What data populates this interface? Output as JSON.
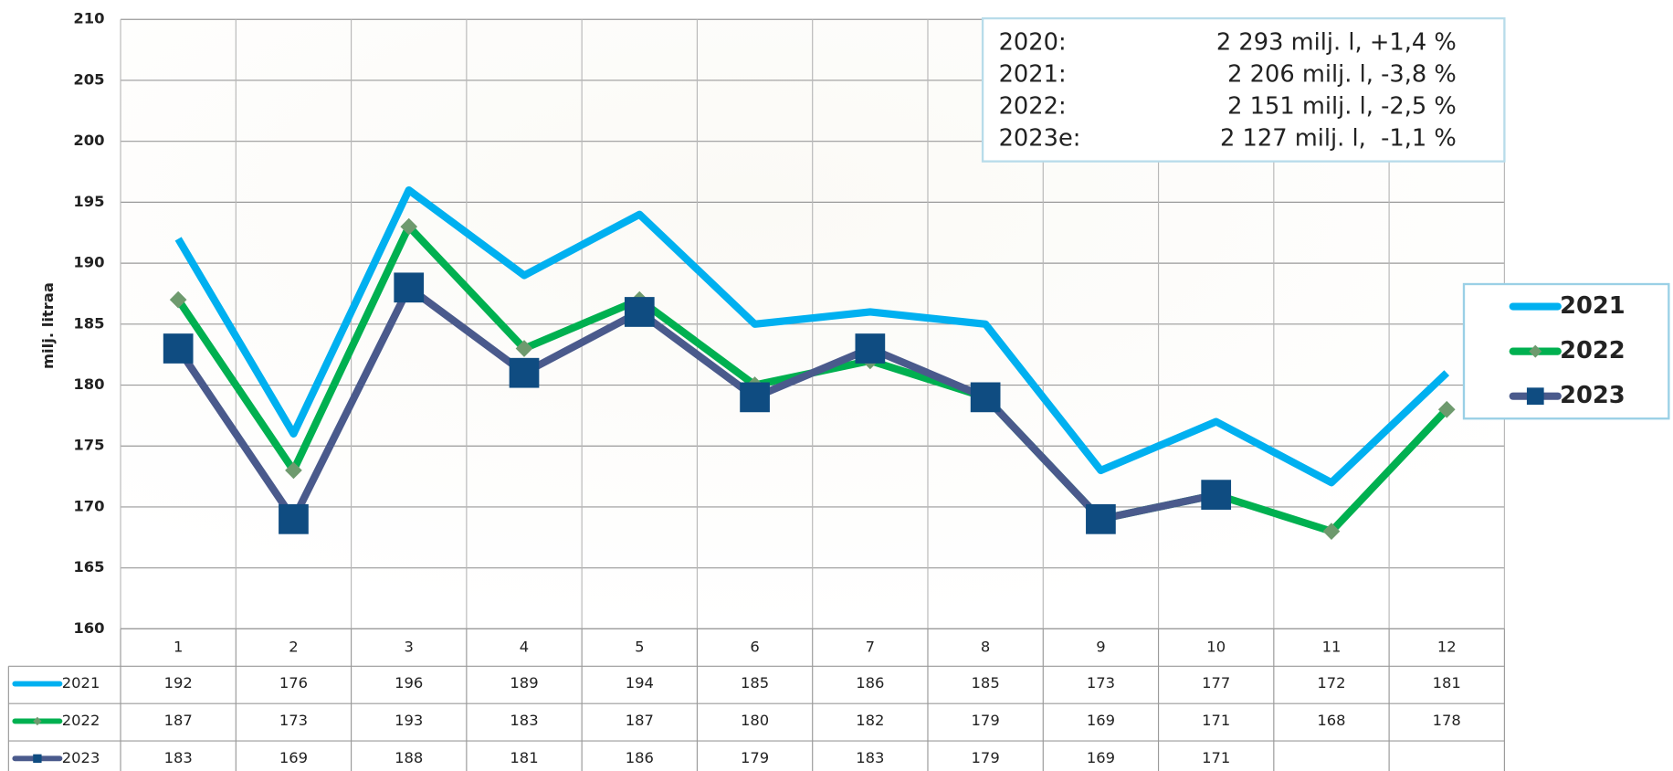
{
  "chart_data": {
    "type": "line",
    "y_label": "milj. litraa",
    "categories": [
      "1",
      "2",
      "3",
      "4",
      "5",
      "6",
      "7",
      "8",
      "9",
      "10",
      "11",
      "12"
    ],
    "series": [
      {
        "name": "2021",
        "color": "#00b0f0",
        "marker": "none",
        "marker_color": "#00b0f0",
        "values": [
          192,
          176,
          196,
          189,
          194,
          185,
          186,
          185,
          173,
          177,
          172,
          181
        ]
      },
      {
        "name": "2022",
        "color": "#00b050",
        "marker": "diamond",
        "marker_color": "#6e9a6e",
        "values": [
          187,
          173,
          193,
          183,
          187,
          180,
          182,
          179,
          169,
          171,
          168,
          178
        ]
      },
      {
        "name": "2023",
        "color": "#4a5a8c",
        "marker": "square",
        "marker_color": "#0f4c81",
        "values": [
          183,
          169,
          188,
          181,
          186,
          179,
          183,
          179,
          169,
          171,
          null,
          null
        ]
      }
    ],
    "ylim": [
      160,
      210
    ],
    "yticks": [
      160,
      165,
      170,
      175,
      180,
      185,
      190,
      195,
      200,
      205,
      210
    ],
    "grid": true,
    "legend": "right",
    "annotations": [
      {
        "label": "2020:",
        "text": "2 293 milj. l, +1,4 %"
      },
      {
        "label": "2021:",
        "text": "2 206 milj. l, -3,8 %"
      },
      {
        "label": "2022:",
        "text": "2 151 milj. l, -2,5 %"
      },
      {
        "label": "2023e:",
        "text": "2 127 milj. l,  -1,1 %"
      }
    ]
  }
}
